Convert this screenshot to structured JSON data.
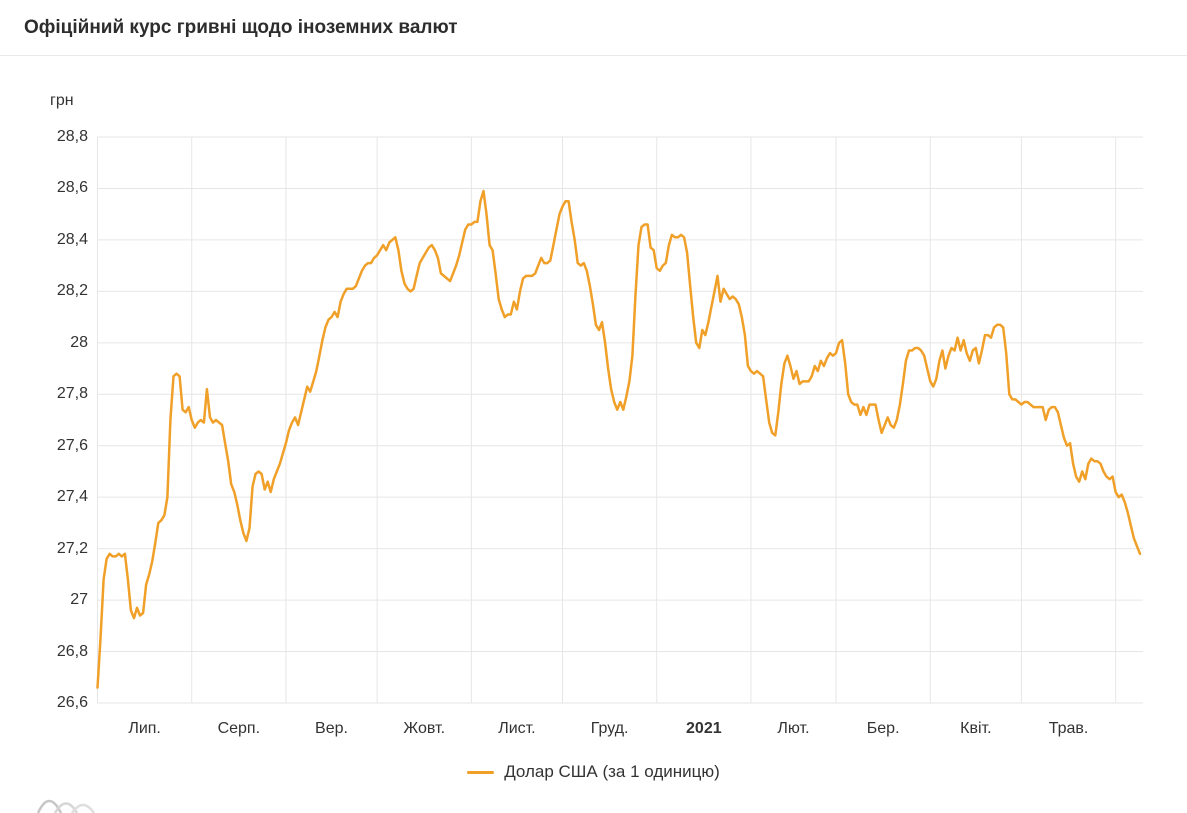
{
  "header": {
    "title": "Офіційний курс гривні щодо іноземних валют"
  },
  "colors": {
    "line": "#f0a028",
    "grid": "#e6e6e6",
    "axis_text": "#333333",
    "title_text": "#2d2d2d",
    "divider": "#e8e8e8",
    "watermark": "#c9c9c9"
  },
  "chart_data": {
    "type": "line",
    "title": "Офіційний курс гривні щодо іноземних валют",
    "unit_label": "грн",
    "grid": true,
    "legend": {
      "label": "Долар США (за 1 одиницю)",
      "position": "bottom-center"
    },
    "y_axis": {
      "min": 26.6,
      "max": 28.8,
      "tick_step": 0.2,
      "tick_labels": [
        "26,6",
        "26,8",
        "27",
        "27,2",
        "27,4",
        "27,6",
        "27,8",
        "28",
        "28,2",
        "28,4",
        "28,6",
        "28,8"
      ]
    },
    "x_axis": {
      "total_days": 344,
      "month_start_days": [
        0,
        31,
        62,
        92,
        123,
        153,
        184,
        215,
        243,
        274,
        304,
        335
      ],
      "labels": [
        {
          "label": "Лип.",
          "center_day": 15.5,
          "bold": false
        },
        {
          "label": "Серп.",
          "center_day": 46.5,
          "bold": false
        },
        {
          "label": "Вер.",
          "center_day": 77,
          "bold": false
        },
        {
          "label": "Жовт.",
          "center_day": 107.5,
          "bold": false
        },
        {
          "label": "Лист.",
          "center_day": 138,
          "bold": false
        },
        {
          "label": "Груд.",
          "center_day": 168.5,
          "bold": false
        },
        {
          "label": "2021",
          "center_day": 199.5,
          "bold": true
        },
        {
          "label": "Лют.",
          "center_day": 229,
          "bold": false
        },
        {
          "label": "Бер.",
          "center_day": 258.5,
          "bold": false
        },
        {
          "label": "Квіт.",
          "center_day": 289,
          "bold": false
        },
        {
          "label": "Трав.",
          "center_day": 319.5,
          "bold": false
        }
      ]
    },
    "series": [
      {
        "name": "Долар США (за 1 одиницю)",
        "color": "#f0a028",
        "start_day": 0,
        "values": [
          26.66,
          26.85,
          27.08,
          27.16,
          27.18,
          27.17,
          27.17,
          27.18,
          27.17,
          27.18,
          27.08,
          26.96,
          26.93,
          26.97,
          26.94,
          26.95,
          27.06,
          27.1,
          27.15,
          27.22,
          27.3,
          27.31,
          27.33,
          27.4,
          27.7,
          27.87,
          27.88,
          27.87,
          27.74,
          27.73,
          27.75,
          27.7,
          27.67,
          27.69,
          27.7,
          27.69,
          27.82,
          27.71,
          27.69,
          27.7,
          27.69,
          27.68,
          27.61,
          27.54,
          27.45,
          27.42,
          27.37,
          27.31,
          27.26,
          27.23,
          27.28,
          27.44,
          27.49,
          27.5,
          27.49,
          27.43,
          27.46,
          27.42,
          27.47,
          27.5,
          27.53,
          27.57,
          27.61,
          27.66,
          27.69,
          27.71,
          27.68,
          27.73,
          27.78,
          27.83,
          27.81,
          27.85,
          27.89,
          27.95,
          28.01,
          28.06,
          28.09,
          28.1,
          28.12,
          28.1,
          28.16,
          28.19,
          28.21,
          28.21,
          28.21,
          28.22,
          28.25,
          28.28,
          28.3,
          28.31,
          28.31,
          28.33,
          28.34,
          28.36,
          28.38,
          28.36,
          28.39,
          28.4,
          28.41,
          28.36,
          28.28,
          28.23,
          28.21,
          28.2,
          28.21,
          28.26,
          28.31,
          28.33,
          28.35,
          28.37,
          28.38,
          28.36,
          28.33,
          28.27,
          28.26,
          28.25,
          28.24,
          28.27,
          28.3,
          28.34,
          28.39,
          28.44,
          28.46,
          28.46,
          28.47,
          28.47,
          28.55,
          28.59,
          28.5,
          28.38,
          28.36,
          28.27,
          28.17,
          28.13,
          28.1,
          28.11,
          28.11,
          28.16,
          28.13,
          28.2,
          28.25,
          28.26,
          28.26,
          28.26,
          28.27,
          28.3,
          28.33,
          28.31,
          28.31,
          28.32,
          28.38,
          28.44,
          28.5,
          28.53,
          28.55,
          28.55,
          28.47,
          28.4,
          28.31,
          28.3,
          28.31,
          28.28,
          28.22,
          28.15,
          28.07,
          28.05,
          28.08,
          28.0,
          27.9,
          27.82,
          27.77,
          27.74,
          27.77,
          27.74,
          27.79,
          27.85,
          27.95,
          28.18,
          28.38,
          28.45,
          28.46,
          28.46,
          28.37,
          28.36,
          28.29,
          28.28,
          28.3,
          28.31,
          28.38,
          28.42,
          28.41,
          28.41,
          28.42,
          28.41,
          28.35,
          28.22,
          28.1,
          28.0,
          27.98,
          28.05,
          28.03,
          28.08,
          28.14,
          28.2,
          28.26,
          28.16,
          28.21,
          28.19,
          28.17,
          28.18,
          28.17,
          28.15,
          28.1,
          28.03,
          27.91,
          27.89,
          27.88,
          27.89,
          27.88,
          27.87,
          27.78,
          27.69,
          27.65,
          27.64,
          27.73,
          27.84,
          27.92,
          27.95,
          27.91,
          27.86,
          27.89,
          27.84,
          27.85,
          27.85,
          27.85,
          27.87,
          27.91,
          27.89,
          27.93,
          27.91,
          27.94,
          27.96,
          27.95,
          27.96,
          28.0,
          28.01,
          27.92,
          27.8,
          27.77,
          27.76,
          27.76,
          27.72,
          27.75,
          27.72,
          27.76,
          27.76,
          27.76,
          27.7,
          27.65,
          27.68,
          27.71,
          27.68,
          27.67,
          27.7,
          27.76,
          27.84,
          27.93,
          27.97,
          27.97,
          27.98,
          27.98,
          27.97,
          27.95,
          27.9,
          27.85,
          27.83,
          27.86,
          27.93,
          27.97,
          27.9,
          27.95,
          27.98,
          27.97,
          28.02,
          27.97,
          28.01,
          27.96,
          27.93,
          27.97,
          27.98,
          27.92,
          27.97,
          28.03,
          28.03,
          28.02,
          28.06,
          28.07,
          28.07,
          28.06,
          27.96,
          27.8,
          27.78,
          27.78,
          27.77,
          27.76,
          27.77,
          27.77,
          27.76,
          27.75,
          27.75,
          27.75,
          27.75,
          27.7,
          27.74,
          27.75,
          27.75,
          27.73,
          27.68,
          27.63,
          27.6,
          27.61,
          27.53,
          27.48,
          27.46,
          27.5,
          27.47,
          27.53,
          27.55,
          27.54,
          27.54,
          27.53,
          27.5,
          27.48,
          27.47,
          27.48,
          27.42,
          27.4,
          27.41,
          27.38,
          27.34,
          27.29,
          27.24,
          27.21,
          27.18
        ]
      }
    ]
  }
}
